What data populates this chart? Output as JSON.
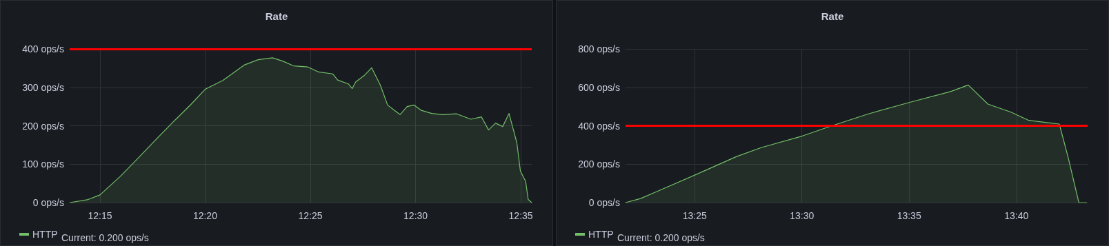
{
  "chart_data": [
    {
      "type": "area",
      "title": "Rate",
      "legend": "bottom left",
      "grid": true,
      "marker": "none",
      "line_style": "solid",
      "xlim": [
        12.226,
        12.592
      ],
      "xticks": [
        {
          "value": 12.25,
          "label": "12:15"
        },
        {
          "value": 12.3333,
          "label": "12:20"
        },
        {
          "value": 12.4167,
          "label": "12:25"
        },
        {
          "value": 12.5,
          "label": "12:30"
        },
        {
          "value": 12.5833,
          "label": "12:35"
        }
      ],
      "ylim": [
        0,
        400
      ],
      "yticks": [
        {
          "value": 0,
          "label": "0 ops/s"
        },
        {
          "value": 100,
          "label": "100 ops/s"
        },
        {
          "value": 200,
          "label": "200 ops/s"
        },
        {
          "value": 300,
          "label": "300 ops/s"
        },
        {
          "value": 400,
          "label": "400 ops/s"
        }
      ],
      "series": [
        {
          "name": "HTTP",
          "color": "#73bf69",
          "x": [
            12.2262,
            12.2407,
            12.25,
            12.266,
            12.28,
            12.294,
            12.308,
            12.3222,
            12.3333,
            12.3473,
            12.3642,
            12.3753,
            12.3867,
            12.395,
            12.4033,
            12.4147,
            12.4232,
            12.4343,
            12.4383,
            12.4467,
            12.4498,
            12.4525,
            12.4597,
            12.4652,
            12.4722,
            12.4778,
            12.4833,
            12.4877,
            12.4933,
            12.4988,
            12.5045,
            12.5128,
            12.5213,
            12.5325,
            12.5438,
            12.5522,
            12.5578,
            12.5633,
            12.569,
            12.574,
            12.5775,
            12.5802,
            12.583,
            12.5872,
            12.5892,
            12.592
          ],
          "values": [
            0,
            8,
            20,
            68,
            115,
            163,
            210,
            256,
            295,
            318,
            358,
            372,
            377,
            368,
            356,
            353,
            340,
            335,
            319,
            309,
            297,
            314,
            332,
            351,
            305,
            254,
            240,
            229,
            250,
            254,
            240,
            232,
            229,
            231,
            217,
            223,
            189,
            207,
            198,
            232,
            189,
            156,
            82,
            55,
            8,
            0
          ]
        }
      ],
      "ref_lines": [
        {
          "axis": "y",
          "value": 400,
          "color": "#ff0000"
        }
      ],
      "annotations": [
        "Current: 0.200 ops/s"
      ]
    },
    {
      "type": "area",
      "title": "Rate",
      "legend": "bottom left",
      "grid": true,
      "marker": "none",
      "line_style": "solid",
      "xlim": [
        13.363,
        13.722
      ],
      "xticks": [
        {
          "value": 13.4167,
          "label": "13:25"
        },
        {
          "value": 13.5,
          "label": "13:30"
        },
        {
          "value": 13.5833,
          "label": "13:35"
        },
        {
          "value": 13.6667,
          "label": "13:40"
        }
      ],
      "ylim": [
        0,
        800
      ],
      "yticks": [
        {
          "value": 0,
          "label": "0 ops/s"
        },
        {
          "value": 200,
          "label": "200 ops/s"
        },
        {
          "value": 400,
          "label": "400 ops/s"
        },
        {
          "value": 600,
          "label": "600 ops/s"
        },
        {
          "value": 800,
          "label": "800 ops/s"
        }
      ],
      "series": [
        {
          "name": "HTTP",
          "color": "#73bf69",
          "x": [
            13.363,
            13.3747,
            13.3857,
            13.4167,
            13.4493,
            13.4687,
            13.5,
            13.5242,
            13.5517,
            13.5838,
            13.6155,
            13.6293,
            13.6445,
            13.6625,
            13.6763,
            13.7,
            13.7068,
            13.7152,
            13.7213
          ],
          "values": [
            0,
            21,
            53,
            143,
            240,
            287,
            346,
            402,
            462,
            522,
            578,
            612,
            513,
            471,
            428,
            409,
            237,
            0,
            0
          ]
        }
      ],
      "ref_lines": [
        {
          "axis": "y",
          "value": 400,
          "color": "#ff0000"
        }
      ],
      "annotations": [
        "Current: 0.200 ops/s"
      ]
    }
  ]
}
